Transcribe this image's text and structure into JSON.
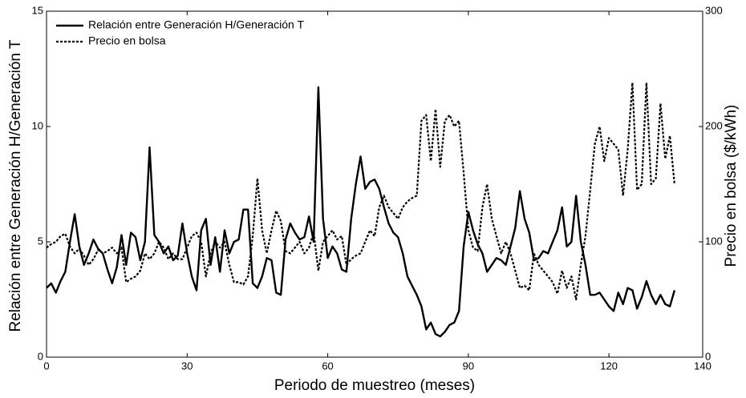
{
  "chart_data": {
    "type": "line",
    "xlabel": "Periodo de muestreo (meses)",
    "ylabel": "Relación entre Generación H/Generación T",
    "y2label": "Precio en bolsa ($/kWh)",
    "x": [
      0,
      1,
      2,
      3,
      4,
      5,
      6,
      7,
      8,
      9,
      10,
      11,
      12,
      13,
      14,
      15,
      16,
      17,
      18,
      19,
      20,
      21,
      22,
      23,
      24,
      25,
      26,
      27,
      28,
      29,
      30,
      31,
      32,
      33,
      34,
      35,
      36,
      37,
      38,
      39,
      40,
      41,
      42,
      43,
      44,
      45,
      46,
      47,
      48,
      49,
      50,
      51,
      52,
      53,
      54,
      55,
      56,
      57,
      58,
      59,
      60,
      61,
      62,
      63,
      64,
      65,
      66,
      67,
      68,
      69,
      70,
      71,
      72,
      73,
      74,
      75,
      76,
      77,
      78,
      79,
      80,
      81,
      82,
      83,
      84,
      85,
      86,
      87,
      88,
      89,
      90,
      91,
      92,
      93,
      94,
      95,
      96,
      97,
      98,
      99,
      100,
      101,
      102,
      103,
      104,
      105,
      106,
      107,
      108,
      109,
      110,
      111,
      112,
      113,
      114,
      115,
      116,
      117,
      118,
      119,
      120,
      121,
      122,
      123,
      124,
      125,
      126,
      127,
      128,
      129,
      130,
      131,
      132,
      133,
      134
    ],
    "series": [
      {
        "name": "Relación entre Generación H/Generación T",
        "color": "#000000",
        "style": "solid",
        "axis": "y",
        "values": [
          3.0,
          3.2,
          2.8,
          3.3,
          3.7,
          5.0,
          6.2,
          4.8,
          4.0,
          4.5,
          5.1,
          4.7,
          4.5,
          3.8,
          3.2,
          3.9,
          5.3,
          4.0,
          5.4,
          5.2,
          4.2,
          5.0,
          9.1,
          5.3,
          5.0,
          4.5,
          4.8,
          4.2,
          4.4,
          5.8,
          4.5,
          3.5,
          2.9,
          5.5,
          6.0,
          4.0,
          5.2,
          3.7,
          5.5,
          4.5,
          5.0,
          5.1,
          6.4,
          6.4,
          3.2,
          3.0,
          3.5,
          4.3,
          4.2,
          2.8,
          2.7,
          5.1,
          5.8,
          5.4,
          5.1,
          5.2,
          6.1,
          5.0,
          11.7,
          6.0,
          4.3,
          4.8,
          4.5,
          3.8,
          3.7,
          6.0,
          7.5,
          8.7,
          7.3,
          7.6,
          7.7,
          7.3,
          6.5,
          5.8,
          5.4,
          5.2,
          4.5,
          3.5,
          3.1,
          2.7,
          2.2,
          1.2,
          1.5,
          1.0,
          0.9,
          1.1,
          1.4,
          1.5,
          2.0,
          4.8,
          6.3,
          5.5,
          4.9,
          4.5,
          3.7,
          4.0,
          4.3,
          4.2,
          4.0,
          4.8,
          5.6,
          7.2,
          6.0,
          5.4,
          4.2,
          4.3,
          4.6,
          4.5,
          5.0,
          5.5,
          6.5,
          4.8,
          5.0,
          7.0,
          5.0,
          4.0,
          2.7,
          2.7,
          2.8,
          2.5,
          2.2,
          2.0,
          2.8,
          2.3,
          3.0,
          2.9,
          2.1,
          2.6,
          3.3,
          2.7,
          2.3,
          2.7,
          2.3,
          2.2,
          2.9
        ]
      },
      {
        "name": "Precio en bolsa",
        "color": "#000000",
        "style": "dotted",
        "axis": "y2",
        "values": [
          95,
          98,
          100,
          105,
          107,
          96,
          90,
          94,
          88,
          80,
          85,
          93,
          90,
          92,
          95,
          90,
          95,
          65,
          68,
          70,
          75,
          90,
          85,
          90,
          100,
          95,
          85,
          90,
          85,
          85,
          95,
          105,
          108,
          100,
          70,
          90,
          100,
          95,
          100,
          80,
          65,
          65,
          63,
          70,
          105,
          155,
          110,
          90,
          110,
          127,
          118,
          92,
          90,
          95,
          100,
          90,
          95,
          108,
          75,
          100,
          105,
          110,
          102,
          105,
          80,
          85,
          88,
          90,
          100,
          110,
          105,
          130,
          140,
          130,
          125,
          120,
          130,
          135,
          138,
          140,
          205,
          210,
          170,
          215,
          165,
          205,
          210,
          200,
          205,
          160,
          110,
          95,
          92,
          130,
          150,
          120,
          105,
          90,
          100,
          90,
          75,
          60,
          62,
          58,
          90,
          80,
          75,
          70,
          65,
          55,
          75,
          60,
          70,
          50,
          80,
          105,
          145,
          185,
          200,
          170,
          190,
          185,
          180,
          140,
          180,
          238,
          145,
          150,
          238,
          150,
          155,
          220,
          172,
          192,
          150
        ]
      }
    ],
    "xlim": [
      0,
      140
    ],
    "xticks": [
      0,
      30,
      60,
      90,
      120,
      140
    ],
    "ylim": [
      0,
      15
    ],
    "yticks": [
      0,
      5,
      10,
      15
    ],
    "y2lim": [
      0,
      300
    ],
    "y2ticks": [
      0,
      100,
      200,
      300
    ],
    "legend": "upper left",
    "grid": false
  }
}
